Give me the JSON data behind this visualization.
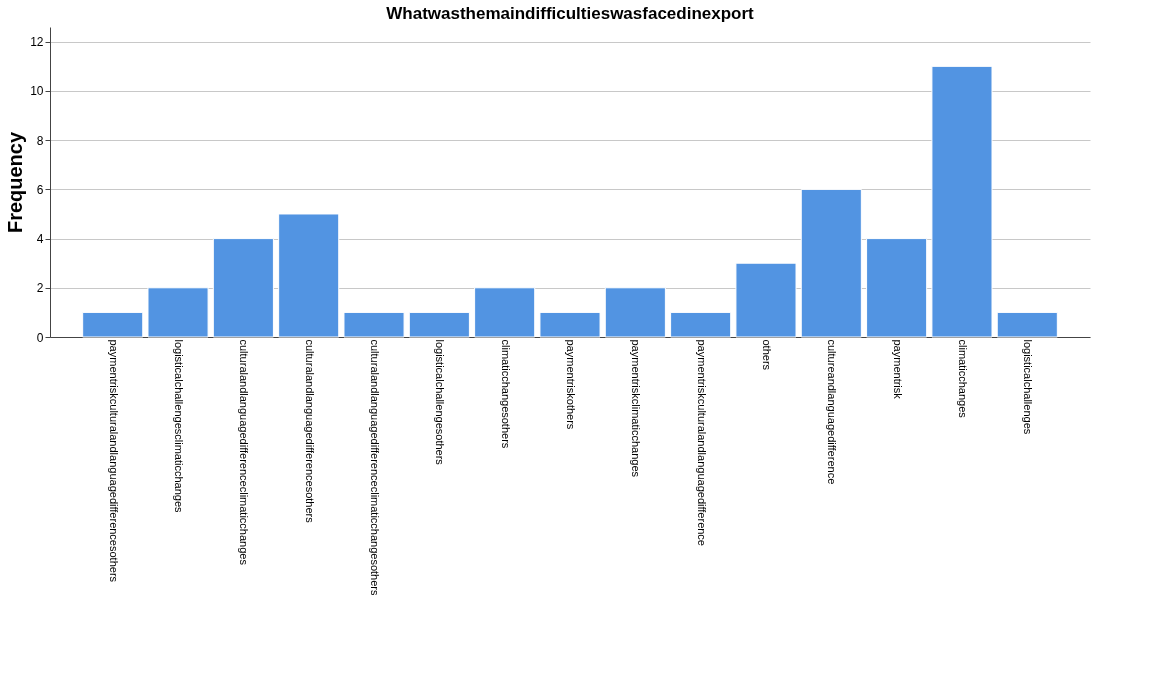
{
  "chart_data": {
    "type": "bar",
    "title": "Whatwasthemaindifficultieswasfacedinexport",
    "ylabel": "Frequency",
    "categories": [
      "paymentriskculturalandlanguagedifferencesothers",
      "logisticalchallengesclimaticchanges",
      "culturalandlanguagedifferenceclimaticchanges",
      "culturalandlanguagedifferencesothers",
      "culturalandlanguagedifferenceclimaticchangesothers",
      "logisticalchallengesothers",
      "climaticchangesothers",
      "paymentriskothers",
      "paymentriskclimaticchanges",
      "paymentriskculturalandlanguagedifference",
      "others",
      "cultureandlanguagedifference",
      "paymentrisk",
      "climaticchanges",
      "logisticalchallenges"
    ],
    "values": [
      1,
      2,
      4,
      5,
      1,
      1,
      2,
      1,
      2,
      1,
      3,
      6,
      4,
      11,
      1
    ],
    "color": "#5294e2",
    "ylim": [
      0,
      12.6
    ],
    "yticks": [
      0,
      2,
      4,
      6,
      8,
      10,
      12
    ],
    "grid": "y"
  }
}
